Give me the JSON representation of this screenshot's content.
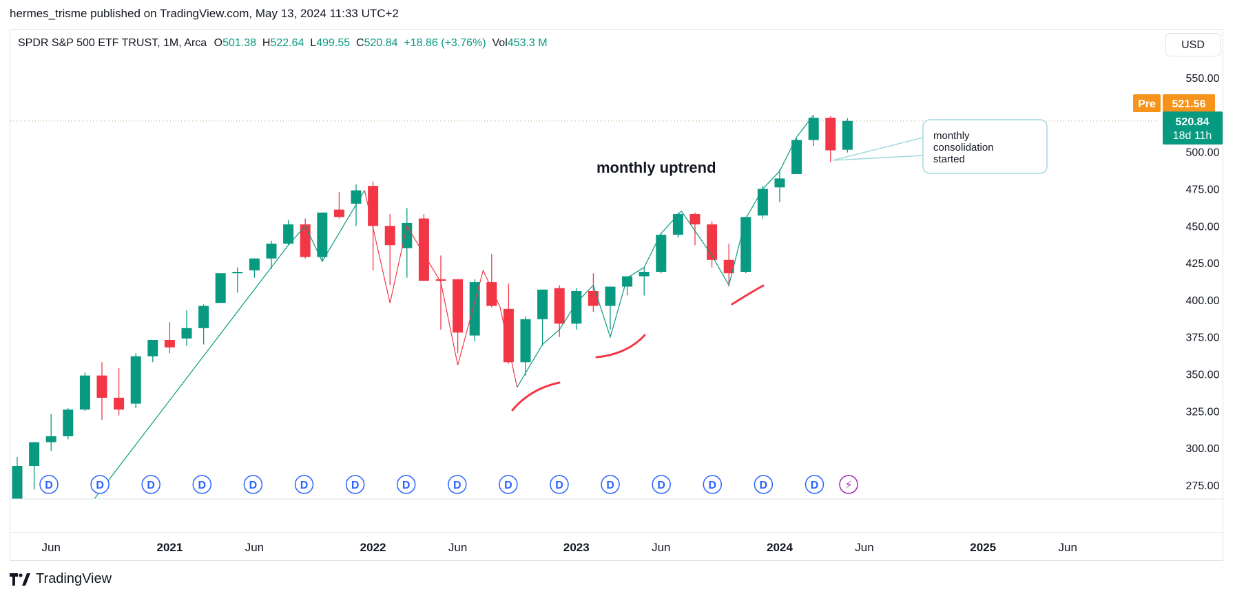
{
  "header": {
    "published_by": "hermes_trisme published on TradingView.com, May 13, 2024 11:33 UTC+2"
  },
  "legend": {
    "symbol": "SPDR S&P 500 ETF TRUST, 1M, Arca",
    "open_label": "O",
    "open": "501.38",
    "high_label": "H",
    "high": "522.64",
    "low_label": "L",
    "low": "499.55",
    "close_label": "C",
    "close": "520.84",
    "change": "+18.86 (+3.76%)",
    "vol_label": "Vol",
    "vol": "453.3 M"
  },
  "currency": "USD",
  "price_tags": {
    "pre_label": "Pre",
    "pre_value": "521.56",
    "last_value": "520.84",
    "countdown": "18d 11h"
  },
  "footer": {
    "brand": "TradingView"
  },
  "colors": {
    "up": "#089981",
    "down": "#f23645",
    "pre": "#f7931a",
    "axis_text": "#131722",
    "grid": "#e0e3eb"
  },
  "chart_data": {
    "type": "candlestick",
    "timeframe": "1M",
    "y_range": [
      260,
      565
    ],
    "y_ticks": [
      "550.00",
      "500.00",
      "475.00",
      "450.00",
      "425.00",
      "400.00",
      "375.00",
      "350.00",
      "325.00",
      "300.00",
      "275.00"
    ],
    "x_labels": [
      {
        "i": 2,
        "label": "Jun",
        "bold": false
      },
      {
        "i": 9,
        "label": "2021",
        "bold": true
      },
      {
        "i": 14,
        "label": "Jun",
        "bold": false
      },
      {
        "i": 21,
        "label": "2022",
        "bold": true
      },
      {
        "i": 26,
        "label": "Jun",
        "bold": false
      },
      {
        "i": 33,
        "label": "2023",
        "bold": true
      },
      {
        "i": 38,
        "label": "Jun",
        "bold": false
      },
      {
        "i": 45,
        "label": "2024",
        "bold": true
      },
      {
        "i": 50,
        "label": "Jun",
        "bold": false
      },
      {
        "i": 57,
        "label": "2025",
        "bold": true
      },
      {
        "i": 62,
        "label": "Jun",
        "bold": false
      }
    ],
    "candles": [
      {
        "t": "2020-04",
        "o": 256,
        "h": 294,
        "l": 253,
        "c": 288
      },
      {
        "t": "2020-05",
        "o": 288,
        "h": 302,
        "l": 272,
        "c": 304
      },
      {
        "t": "2020-06",
        "o": 304,
        "h": 323,
        "l": 298,
        "c": 308
      },
      {
        "t": "2020-07",
        "o": 308,
        "h": 327,
        "l": 306,
        "c": 326
      },
      {
        "t": "2020-08",
        "o": 326,
        "h": 351,
        "l": 325,
        "c": 349
      },
      {
        "t": "2020-09",
        "o": 349,
        "h": 358,
        "l": 319,
        "c": 334
      },
      {
        "t": "2020-10",
        "o": 334,
        "h": 354,
        "l": 322,
        "c": 326
      },
      {
        "t": "2020-11",
        "o": 330,
        "h": 364,
        "l": 327,
        "c": 362
      },
      {
        "t": "2020-12",
        "o": 362,
        "h": 373,
        "l": 358,
        "c": 373
      },
      {
        "t": "2021-01",
        "o": 373,
        "h": 385,
        "l": 364,
        "c": 368
      },
      {
        "t": "2021-02",
        "o": 374,
        "h": 393,
        "l": 369,
        "c": 381
      },
      {
        "t": "2021-03",
        "o": 381,
        "h": 397,
        "l": 370,
        "c": 396
      },
      {
        "t": "2021-04",
        "o": 398,
        "h": 418,
        "l": 398,
        "c": 418
      },
      {
        "t": "2021-05",
        "o": 418,
        "h": 422,
        "l": 405,
        "c": 419
      },
      {
        "t": "2021-06",
        "o": 420,
        "h": 428,
        "l": 415,
        "c": 428
      },
      {
        "t": "2021-07",
        "o": 428,
        "h": 440,
        "l": 421,
        "c": 438
      },
      {
        "t": "2021-08",
        "o": 438,
        "h": 454,
        "l": 437,
        "c": 451
      },
      {
        "t": "2021-09",
        "o": 451,
        "h": 455,
        "l": 428,
        "c": 429
      },
      {
        "t": "2021-10",
        "o": 429,
        "h": 459,
        "l": 426,
        "c": 459
      },
      {
        "t": "2021-11",
        "o": 461,
        "h": 473,
        "l": 455,
        "c": 456
      },
      {
        "t": "2021-12",
        "o": 465,
        "h": 478,
        "l": 450,
        "c": 474
      },
      {
        "t": "2022-01",
        "o": 477,
        "h": 480,
        "l": 420,
        "c": 450
      },
      {
        "t": "2022-02",
        "o": 450,
        "h": 458,
        "l": 410,
        "c": 437
      },
      {
        "t": "2022-03",
        "o": 435,
        "h": 462,
        "l": 415,
        "c": 452
      },
      {
        "t": "2022-04",
        "o": 455,
        "h": 458,
        "l": 413,
        "c": 413
      },
      {
        "t": "2022-05",
        "o": 414,
        "h": 430,
        "l": 380,
        "c": 413
      },
      {
        "t": "2022-06",
        "o": 414,
        "h": 414,
        "l": 364,
        "c": 378
      },
      {
        "t": "2022-07",
        "o": 376,
        "h": 414,
        "l": 372,
        "c": 412
      },
      {
        "t": "2022-08",
        "o": 412,
        "h": 431,
        "l": 395,
        "c": 396
      },
      {
        "t": "2022-09",
        "o": 394,
        "h": 411,
        "l": 357,
        "c": 358
      },
      {
        "t": "2022-10",
        "o": 358,
        "h": 389,
        "l": 349,
        "c": 387
      },
      {
        "t": "2022-11",
        "o": 387,
        "h": 407,
        "l": 369,
        "c": 407
      },
      {
        "t": "2022-12",
        "o": 408,
        "h": 410,
        "l": 375,
        "c": 384
      },
      {
        "t": "2023-01",
        "o": 384,
        "h": 408,
        "l": 380,
        "c": 406
      },
      {
        "t": "2023-02",
        "o": 406,
        "h": 418,
        "l": 392,
        "c": 396
      },
      {
        "t": "2023-03",
        "o": 396,
        "h": 409,
        "l": 380,
        "c": 409
      },
      {
        "t": "2023-04",
        "o": 409,
        "h": 415,
        "l": 403,
        "c": 416
      },
      {
        "t": "2023-05",
        "o": 416,
        "h": 422,
        "l": 403,
        "c": 419
      },
      {
        "t": "2023-06",
        "o": 419,
        "h": 445,
        "l": 418,
        "c": 444
      },
      {
        "t": "2023-07",
        "o": 444,
        "h": 459,
        "l": 442,
        "c": 458
      },
      {
        "t": "2023-08",
        "o": 458,
        "h": 459,
        "l": 437,
        "c": 451
      },
      {
        "t": "2023-09",
        "o": 451,
        "h": 453,
        "l": 422,
        "c": 427
      },
      {
        "t": "2023-10",
        "o": 427,
        "h": 438,
        "l": 409,
        "c": 418
      },
      {
        "t": "2023-11",
        "o": 419,
        "h": 456,
        "l": 418,
        "c": 456
      },
      {
        "t": "2023-12",
        "o": 457,
        "h": 477,
        "l": 455,
        "c": 475
      },
      {
        "t": "2024-01",
        "o": 476,
        "h": 488,
        "l": 466,
        "c": 482
      },
      {
        "t": "2024-02",
        "o": 485,
        "h": 509,
        "l": 485,
        "c": 508
      },
      {
        "t": "2024-03",
        "o": 508,
        "h": 524,
        "l": 504,
        "c": 523
      },
      {
        "t": "2024-04",
        "o": 523,
        "h": 524,
        "l": 493,
        "c": 501
      },
      {
        "t": "2024-05",
        "o": 501.38,
        "h": 522.64,
        "l": 499.55,
        "c": 520.84
      }
    ],
    "dividend_markers": {
      "label": "D",
      "count": 16
    },
    "earnings_marker": "⚡",
    "annotations": [
      {
        "text": "monthly uptrend"
      },
      {
        "text": "monthly consolidation started",
        "lines": [
          "monthly",
          "consolidation",
          "started"
        ]
      }
    ]
  }
}
